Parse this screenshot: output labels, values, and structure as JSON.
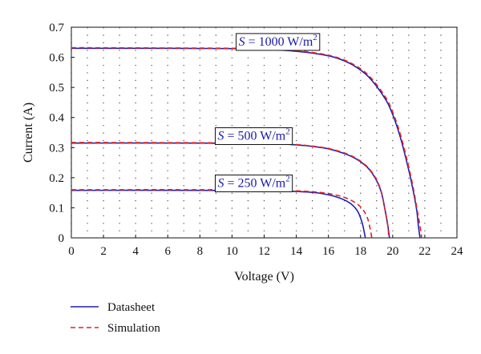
{
  "chart_data": {
    "type": "line",
    "xlabel": "Voltage (V)",
    "ylabel": "Current (A)",
    "xlim": [
      0,
      24
    ],
    "ylim": [
      0,
      0.7
    ],
    "xticks": [
      0,
      2,
      4,
      6,
      8,
      10,
      12,
      14,
      16,
      18,
      20,
      22,
      24
    ],
    "yticks": [
      0,
      0.1,
      0.2,
      0.3,
      0.4,
      0.5,
      0.6,
      0.7
    ],
    "ytick_labels": [
      "0",
      "0.1",
      "0.2",
      "0.3",
      "0.4",
      "0.5",
      "0.6",
      "0.7"
    ],
    "grid": "dotted",
    "legend_position": "bottom-left, below plot",
    "colors": {
      "datasheet": "#1f1fb4",
      "simulation": "#e02020",
      "annotation": "#1a1aa8"
    },
    "series": [
      {
        "name": "Datasheet",
        "style": "solid",
        "curves": [
          {
            "irradiance": "1000",
            "points": [
              [
                0,
                0.63
              ],
              [
                6,
                0.63
              ],
              [
                10,
                0.629
              ],
              [
                12,
                0.627
              ],
              [
                14,
                0.62
              ],
              [
                15.5,
                0.61
              ],
              [
                16.5,
                0.598
              ],
              [
                17.5,
                0.575
              ],
              [
                18.5,
                0.535
              ],
              [
                19.5,
                0.465
              ],
              [
                20,
                0.41
              ],
              [
                20.5,
                0.33
              ],
              [
                21,
                0.225
              ],
              [
                21.3,
                0.15
              ],
              [
                21.5,
                0.09
              ],
              [
                21.6,
                0.04
              ],
              [
                21.7,
                0
              ]
            ]
          },
          {
            "irradiance": "500",
            "points": [
              [
                0,
                0.315
              ],
              [
                8,
                0.315
              ],
              [
                12,
                0.313
              ],
              [
                13.5,
                0.311
              ],
              [
                15,
                0.304
              ],
              [
                16,
                0.296
              ],
              [
                17,
                0.28
              ],
              [
                17.8,
                0.26
              ],
              [
                18.5,
                0.23
              ],
              [
                19,
                0.19
              ],
              [
                19.3,
                0.15
              ],
              [
                19.5,
                0.1
              ],
              [
                19.7,
                0.04
              ],
              [
                19.8,
                0
              ]
            ]
          },
          {
            "irradiance": "250",
            "points": [
              [
                0,
                0.158
              ],
              [
                8,
                0.158
              ],
              [
                11,
                0.157
              ],
              [
                13,
                0.156
              ],
              [
                14.5,
                0.153
              ],
              [
                15.5,
                0.148
              ],
              [
                16.5,
                0.136
              ],
              [
                17.3,
                0.117
              ],
              [
                17.8,
                0.09
              ],
              [
                18.1,
                0.05
              ],
              [
                18.3,
                0
              ]
            ]
          }
        ]
      },
      {
        "name": "Simulation",
        "style": "dashed",
        "curves": [
          {
            "irradiance": "1000",
            "points": [
              [
                0,
                0.632
              ],
              [
                6,
                0.631
              ],
              [
                10,
                0.63
              ],
              [
                12,
                0.628
              ],
              [
                14,
                0.622
              ],
              [
                15.5,
                0.612
              ],
              [
                16.5,
                0.6
              ],
              [
                17.5,
                0.578
              ],
              [
                18.5,
                0.54
              ],
              [
                19.5,
                0.472
              ],
              [
                20,
                0.418
              ],
              [
                20.5,
                0.34
              ],
              [
                21,
                0.235
              ],
              [
                21.3,
                0.16
              ],
              [
                21.5,
                0.1
              ],
              [
                21.7,
                0.04
              ],
              [
                21.8,
                0
              ]
            ]
          },
          {
            "irradiance": "500",
            "points": [
              [
                0,
                0.317
              ],
              [
                8,
                0.316
              ],
              [
                12,
                0.314
              ],
              [
                13.5,
                0.312
              ],
              [
                15,
                0.305
              ],
              [
                16,
                0.297
              ],
              [
                17,
                0.282
              ],
              [
                17.8,
                0.262
              ],
              [
                18.5,
                0.232
              ],
              [
                19,
                0.193
              ],
              [
                19.3,
                0.152
              ],
              [
                19.5,
                0.1
              ],
              [
                19.7,
                0.04
              ],
              [
                19.75,
                0
              ]
            ]
          },
          {
            "irradiance": "250",
            "points": [
              [
                0,
                0.16
              ],
              [
                8,
                0.16
              ],
              [
                11,
                0.159
              ],
              [
                13,
                0.158
              ],
              [
                14.5,
                0.155
              ],
              [
                15.5,
                0.151
              ],
              [
                16.5,
                0.142
              ],
              [
                17.3,
                0.128
              ],
              [
                18,
                0.103
              ],
              [
                18.4,
                0.07
              ],
              [
                18.6,
                0.03
              ],
              [
                18.7,
                0
              ]
            ]
          }
        ]
      }
    ],
    "annotations": [
      {
        "text": "S = 1000 W/m²",
        "prefix": "S",
        "rest": " = 1000 W/m",
        "sup": "2",
        "at": [
          13.5,
          0.655
        ]
      },
      {
        "text": "S = 500 W/m²",
        "prefix": "S",
        "rest": " = 500 W/m",
        "sup": "2",
        "at": [
          12.2,
          0.342
        ]
      },
      {
        "text": "S = 250 W/m²",
        "prefix": "S",
        "rest": " = 250 W/m",
        "sup": "2",
        "at": [
          12.2,
          0.185
        ]
      }
    ]
  }
}
